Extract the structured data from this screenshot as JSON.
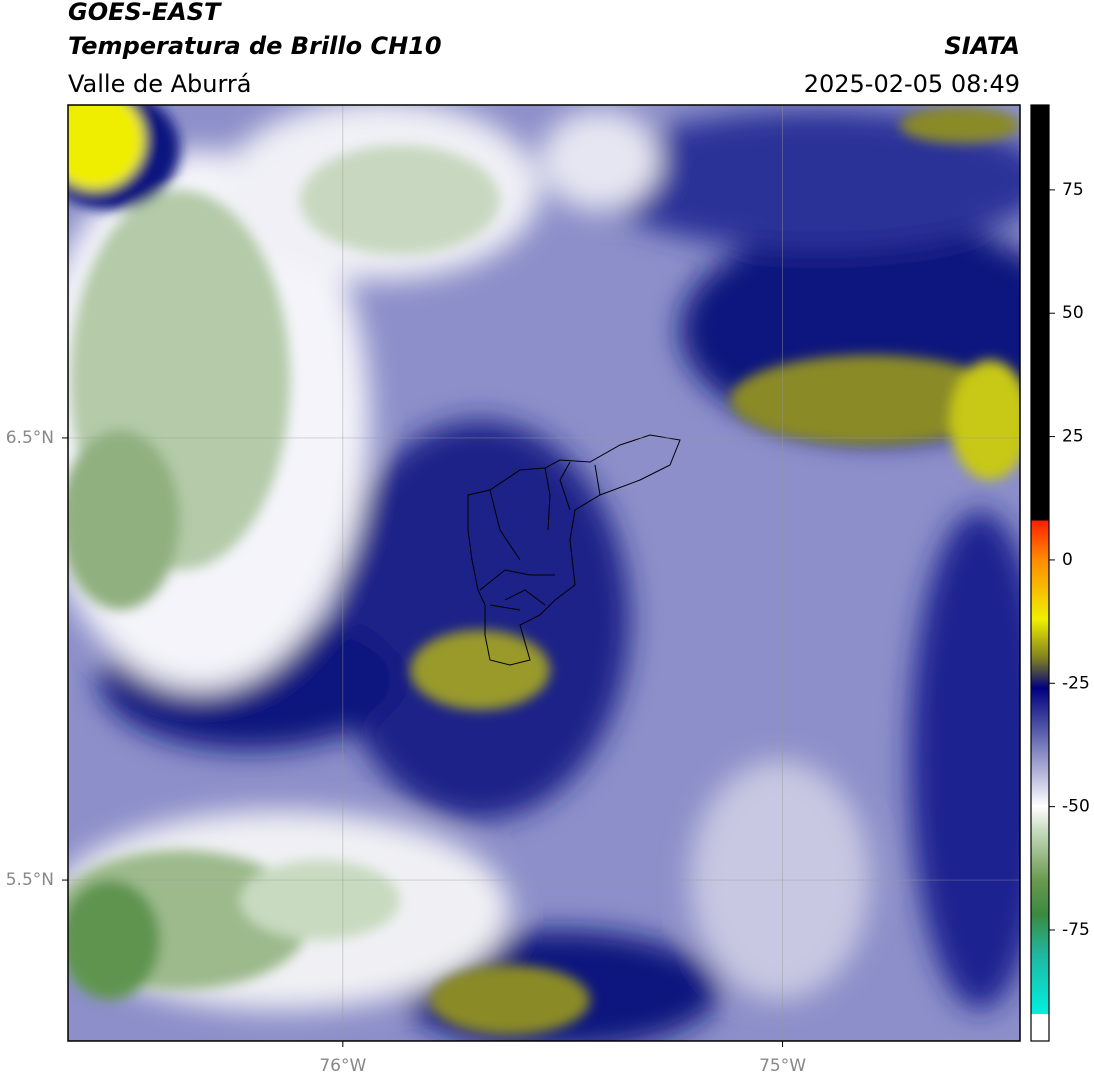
{
  "header": {
    "title": "GOES-EAST",
    "subtitle": "Temperatura de Brillo CH10",
    "region": "Valle de Aburrá",
    "source": "SIATA",
    "timestamp": "2025-02-05 08:49"
  },
  "map": {
    "xlim": [
      -76.625,
      -74.46
    ],
    "ylim": [
      5.136,
      7.253
    ],
    "xticks": [
      {
        "value": -76,
        "label": "76°W"
      },
      {
        "value": -75,
        "label": "75°W"
      }
    ],
    "yticks": [
      {
        "value": 6.5,
        "label": "6.5°N"
      },
      {
        "value": 5.5,
        "label": "5.5°N"
      }
    ]
  },
  "colorbar": {
    "lim": [
      -97.5,
      92.2
    ],
    "ticks": [
      75,
      50,
      25,
      0,
      -25,
      -50,
      -75
    ]
  }
}
